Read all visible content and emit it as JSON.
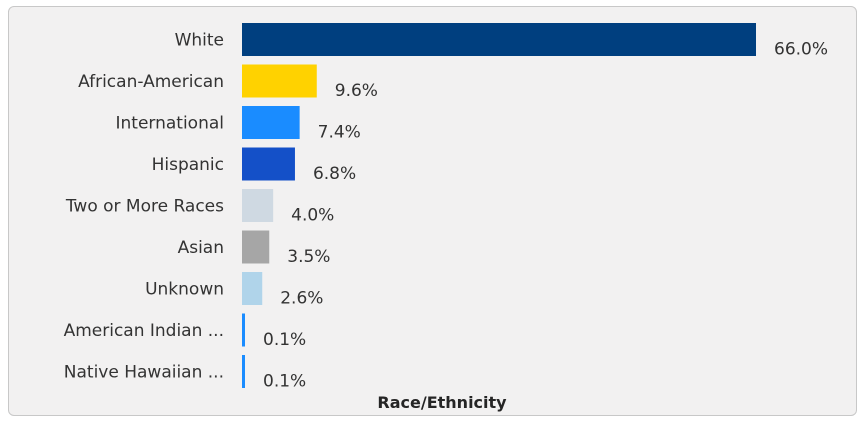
{
  "chart_data": {
    "type": "bar",
    "orientation": "horizontal",
    "title": "",
    "xlabel": "Race/Ethnicity",
    "ylabel": "",
    "categories": [
      "White",
      "African-American",
      "International",
      "Hispanic",
      "Two or More Races",
      "Asian",
      "Unknown",
      "American Indian ...",
      "Native Hawaiian ..."
    ],
    "values": [
      66.0,
      9.6,
      7.4,
      6.8,
      4.0,
      3.5,
      2.6,
      0.1,
      0.1
    ],
    "value_labels": [
      "66.0%",
      "9.6%",
      "7.4%",
      "6.8%",
      "4.0%",
      "3.5%",
      "2.6%",
      "0.1%",
      "0.1%"
    ],
    "colors": [
      "#003f7f",
      "#ffd200",
      "#1a8cff",
      "#1450c8",
      "#cfd9e2",
      "#a6a6a6",
      "#b0d4ea",
      "#1a8cff",
      "#1a8cff"
    ],
    "xlim": [
      0,
      66.0
    ],
    "grid": false,
    "legend": "none"
  }
}
